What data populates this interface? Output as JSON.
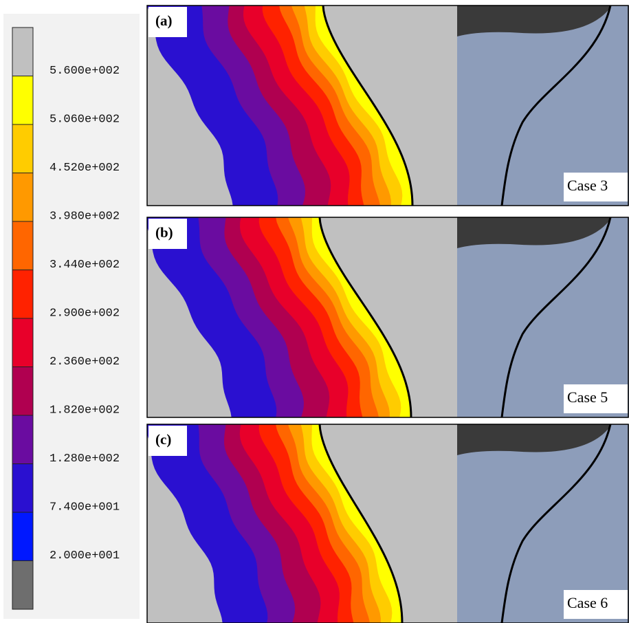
{
  "colorbar": {
    "labels": [
      "5.600e+002",
      "5.060e+002",
      "4.520e+002",
      "3.980e+002",
      "3.440e+002",
      "2.900e+002",
      "2.360e+002",
      "1.820e+002",
      "1.280e+002",
      "7.400e+001",
      "2.000e+001"
    ]
  },
  "panels": [
    {
      "label": "(a)",
      "case": "Case 3"
    },
    {
      "label": "(b)",
      "case": "Case 5"
    },
    {
      "label": "(c)",
      "case": "Case 6"
    }
  ]
}
